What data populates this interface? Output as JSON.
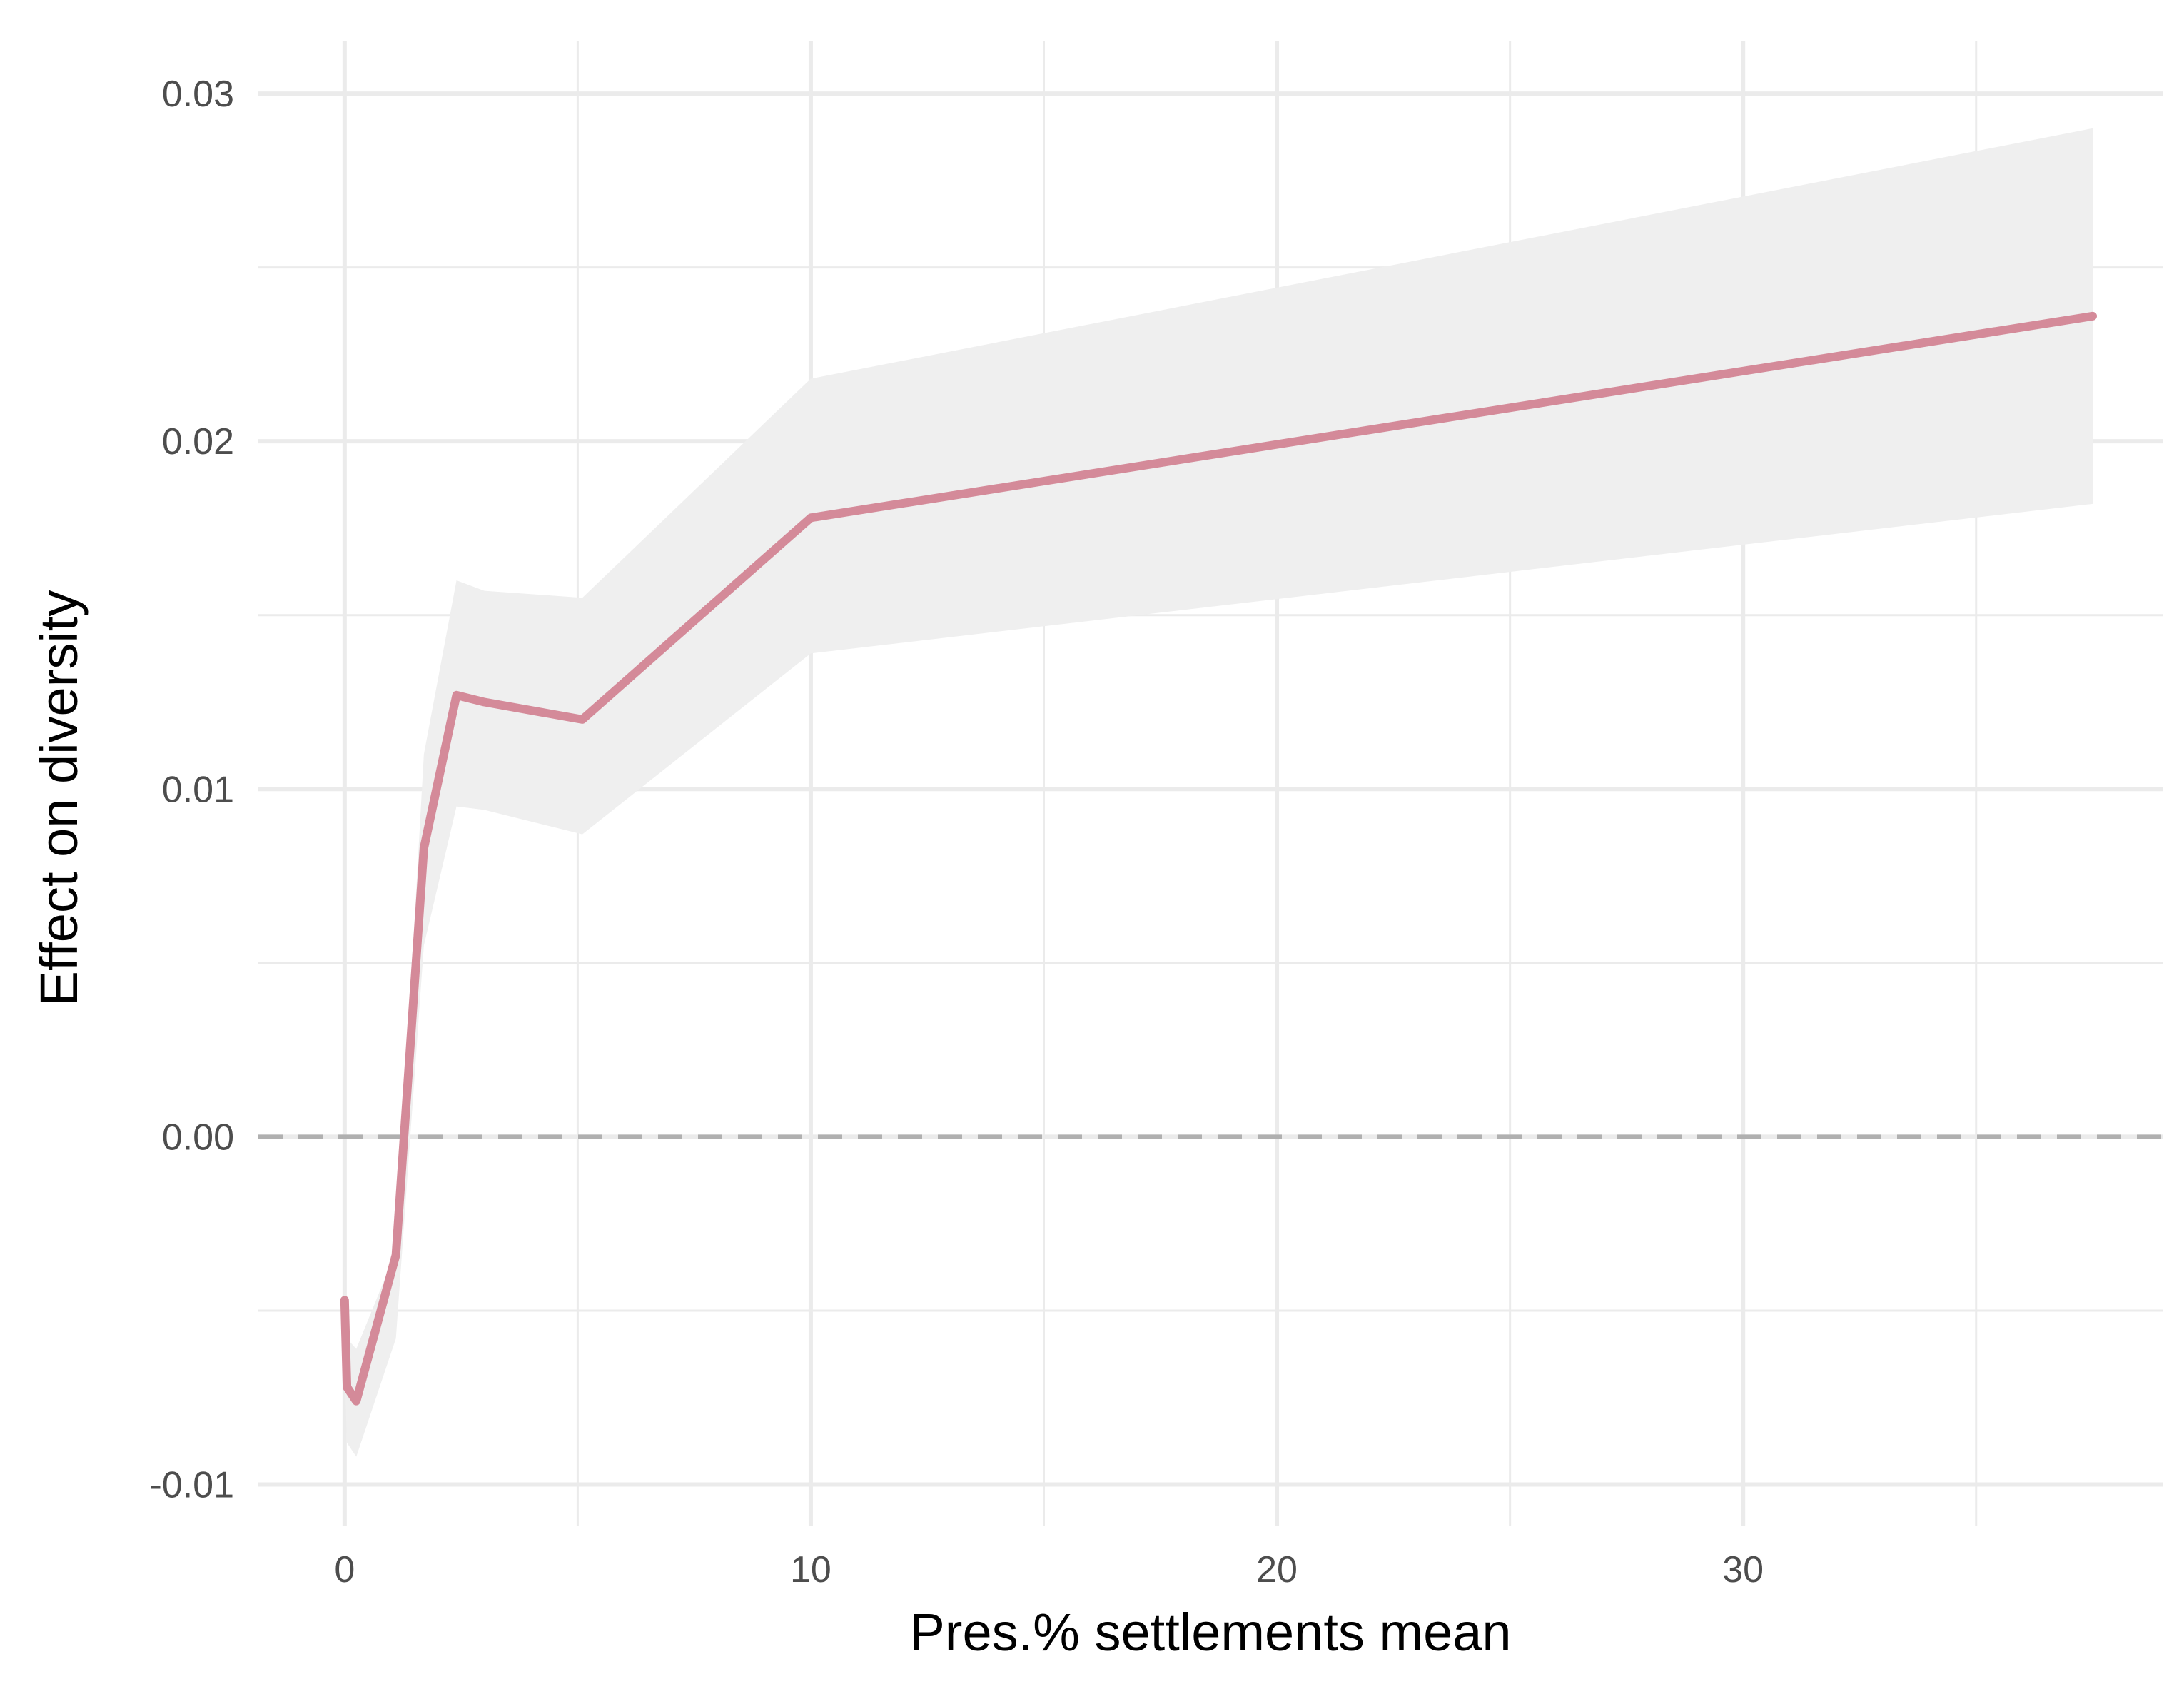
{
  "chart_data": {
    "type": "line",
    "xlabel": "Pres.% settlements mean",
    "ylabel": "Effect on diversity",
    "xlim": [
      -1.85,
      39.0
    ],
    "ylim": [
      -0.0112,
      0.0315
    ],
    "x_ticks": [
      0,
      10,
      20,
      30
    ],
    "x_minor_ticks": [
      5,
      15,
      25,
      35
    ],
    "y_ticks": [
      -0.01,
      0.0,
      0.01,
      0.02,
      0.03
    ],
    "y_tick_labels": [
      "-0.01",
      "0.00",
      "0.01",
      "0.02",
      "0.03"
    ],
    "y_minor_ticks": [
      -0.005,
      0.005,
      0.015,
      0.025
    ],
    "grid": true,
    "reference_line": {
      "y": 0,
      "style": "dashed",
      "color": "#b0b0b0"
    },
    "series": [
      {
        "color": "#d48a99",
        "band_color": "#efefef",
        "x": [
          0.0,
          0.05,
          0.25,
          1.1,
          1.7,
          2.4,
          3.0,
          5.1,
          10.0,
          37.5
        ],
        "y": [
          -0.0047,
          -0.0072,
          -0.0076,
          -0.0034,
          0.0083,
          0.0127,
          0.0125,
          0.012,
          0.0178,
          0.0236
        ],
        "lower": [
          -0.0067,
          -0.0088,
          -0.0092,
          -0.0058,
          0.0055,
          0.0095,
          0.0094,
          0.0087,
          0.0139,
          0.0182
        ],
        "upper": [
          -0.0037,
          -0.0058,
          -0.0061,
          -0.0033,
          0.011,
          0.016,
          0.0157,
          0.0155,
          0.0218,
          0.029
        ]
      }
    ]
  }
}
